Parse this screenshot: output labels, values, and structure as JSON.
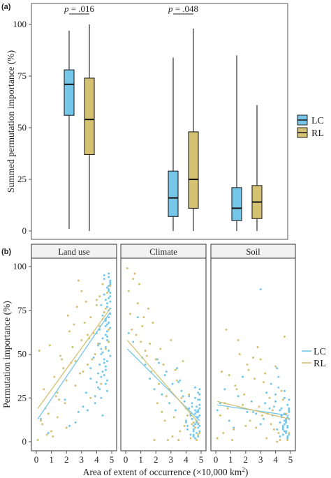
{
  "chart_data": [
    {
      "panel": "(a)",
      "type": "boxplot",
      "ylabel": "Summed permutation importance (%)",
      "ylim": [
        0,
        100
      ],
      "yticks": [
        0,
        25,
        50,
        75,
        100
      ],
      "groups": [
        "Land use",
        "Climate",
        "Soil"
      ],
      "legend": {
        "position": "right",
        "entries": [
          {
            "label": "LC",
            "color": "#75c6e8"
          },
          {
            "label": "RL",
            "color": "#d4c172"
          }
        ]
      },
      "series": [
        {
          "name": "LC",
          "color": "#75c6e8",
          "boxes": [
            {
              "min": 1,
              "q1": 56,
              "median": 71,
              "q3": 78,
              "max": 97
            },
            {
              "min": 0,
              "q1": 7,
              "median": 16,
              "q3": 29,
              "max": 84
            },
            {
              "min": 0,
              "q1": 5,
              "median": 11,
              "q3": 21,
              "max": 85
            }
          ]
        },
        {
          "name": "RL",
          "color": "#d4c172",
          "boxes": [
            {
              "min": 0,
              "q1": 37,
              "median": 54,
              "q3": 74,
              "max": 100
            },
            {
              "min": 0,
              "q1": 11,
              "median": 25,
              "q3": 48,
              "max": 98
            },
            {
              "min": 0,
              "q1": 6,
              "median": 14,
              "q3": 22,
              "max": 61
            }
          ]
        }
      ],
      "annotations": [
        {
          "group": 0,
          "text": "p = .016"
        },
        {
          "group": 1,
          "text": "p = .048"
        }
      ]
    },
    {
      "panel": "(b)",
      "type": "scatter",
      "ylabel": "Permutation importance (%)",
      "xlabel": "Area of extent of occurrence (×10,000 km²)",
      "ylim": [
        0,
        100
      ],
      "xlim": [
        0,
        5
      ],
      "yticks": [
        0,
        25,
        50,
        75,
        100
      ],
      "xticks": [
        0,
        1,
        2,
        3,
        4,
        5
      ],
      "facets": [
        "Land use",
        "Climate",
        "Soil"
      ],
      "legend": {
        "position": "right",
        "entries": [
          {
            "label": "LC",
            "color": "#75c6e8"
          },
          {
            "label": "RL",
            "color": "#d4c172"
          }
        ]
      },
      "fits": [
        {
          "facet": 0,
          "series": "LC",
          "x": [
            0.1,
            4.9
          ],
          "y": [
            13,
            74
          ]
        },
        {
          "facet": 0,
          "series": "RL",
          "x": [
            0.1,
            4.9
          ],
          "y": [
            19,
            76
          ]
        },
        {
          "facet": 1,
          "series": "LC",
          "x": [
            0.1,
            4.9
          ],
          "y": [
            53,
            12
          ]
        },
        {
          "facet": 1,
          "series": "RL",
          "x": [
            0.1,
            4.9
          ],
          "y": [
            58,
            10
          ]
        },
        {
          "facet": 2,
          "series": "LC",
          "x": [
            0.1,
            4.9
          ],
          "y": [
            21,
            15
          ]
        },
        {
          "facet": 2,
          "series": "RL",
          "x": [
            0.1,
            4.9
          ],
          "y": [
            23,
            13
          ]
        }
      ],
      "points": [
        {
          "facet": 0,
          "series": "LC",
          "x": [
            4.5,
            4.7,
            4.8,
            4.3,
            4.9,
            4.6,
            4.2,
            4.8,
            4.4,
            4.9,
            4.7,
            4.1,
            4.5,
            4.8,
            4.6,
            4.3,
            4.9,
            4.7,
            4.0,
            4.5,
            4.8,
            3.8,
            4.6,
            4.9,
            4.4,
            4.7,
            3.6,
            4.2,
            4.8,
            4.5,
            3.3,
            4.9,
            4.6,
            3.9,
            4.7,
            4.3,
            3.1,
            4.8,
            4.4,
            2.6,
            2.8,
            4.6,
            3.6,
            1.9,
            4.9,
            4.1,
            0.3,
            0.8,
            2.2,
            4.7,
            3.4,
            4.8,
            4.5,
            4.2,
            4.9,
            4.7,
            4.6,
            4.4,
            4.8,
            4.3,
            4.9,
            4.5,
            4.6,
            4.7,
            4.2,
            4.8,
            4.9,
            4.1,
            3.9,
            4.7,
            4.4,
            4.6,
            4.8,
            4.0,
            4.5,
            4.9,
            4.3,
            4.7,
            4.8,
            4.6
          ],
          "y": [
            95,
            88,
            82,
            78,
            90,
            70,
            64,
            86,
            72,
            92,
            60,
            55,
            84,
            75,
            66,
            50,
            80,
            58,
            62,
            45,
            68,
            48,
            54,
            73,
            40,
            35,
            42,
            30,
            52,
            38,
            28,
            65,
            33,
            22,
            46,
            25,
            20,
            57,
            15,
            11,
            17,
            61,
            36,
            24,
            49,
            31,
            13,
            5,
            9,
            79,
            18,
            94,
            74,
            56,
            85,
            67,
            81,
            59,
            71,
            53,
            76,
            47,
            69,
            63,
            44,
            89,
            83,
            39,
            26,
            77,
            51,
            43,
            87,
            34,
            93,
            91,
            37,
            29,
            96,
            41
          ]
        },
        {
          "facet": 0,
          "series": "RL",
          "x": [
            0.1,
            0.3,
            0.2,
            0.5,
            0.7,
            1.0,
            0.9,
            1.2,
            1.4,
            1.6,
            1.8,
            2.0,
            2.2,
            2.4,
            2.6,
            2.8,
            3.0,
            3.2,
            3.4,
            3.6,
            3.8,
            4.0,
            4.2,
            4.4,
            4.6,
            4.8,
            0.4,
            0.8,
            1.1,
            1.5,
            1.9,
            2.3,
            2.7,
            3.1,
            3.5,
            3.9,
            4.3,
            4.7,
            2.1,
            2.5,
            2.9,
            3.3,
            3.7,
            4.1,
            4.5,
            4.9,
            1.3,
            1.7,
            0.6,
            3.0,
            2.0,
            4.0,
            3.6,
            4.4,
            4.8,
            2.6,
            1.4,
            3.4,
            4.2,
            4.6
          ],
          "y": [
            1,
            12,
            52,
            30,
            4,
            6,
            55,
            37,
            28,
            49,
            42,
            8,
            63,
            54,
            32,
            92,
            86,
            68,
            44,
            71,
            62,
            81,
            66,
            90,
            76,
            57,
            10,
            16,
            3,
            24,
            22,
            45,
            77,
            40,
            59,
            50,
            33,
            85,
            72,
            67,
            39,
            80,
            47,
            56,
            74,
            89,
            26,
            47,
            19,
            58,
            35,
            78,
            25,
            70,
            64,
            46,
            14,
            61,
            83,
            53
          ]
        },
        {
          "facet": 1,
          "series": "LC",
          "x": [
            0.2,
            0.5,
            0.8,
            1.1,
            1.3,
            1.6,
            1.9,
            2.1,
            2.4,
            2.7,
            2.9,
            3.1,
            3.3,
            3.5,
            3.7,
            3.9,
            4.0,
            4.2,
            4.3,
            4.4,
            4.5,
            4.6,
            4.7,
            4.8,
            4.9,
            4.6,
            4.7,
            4.8,
            4.9,
            4.5,
            4.4,
            4.6,
            4.8,
            4.9,
            4.7,
            4.3,
            4.5,
            4.9,
            4.8,
            4.6,
            4.7,
            3.8,
            4.1,
            4.4,
            4.6,
            4.8,
            4.9,
            4.2,
            3.6,
            3.4,
            2.6,
            2.2,
            4.0,
            4.5,
            4.7,
            4.9,
            4.8,
            4.3,
            4.6,
            4.4,
            4.9,
            4.7,
            4.5,
            4.8,
            4.1,
            4.6,
            4.9,
            4.8
          ],
          "y": [
            62,
            57,
            71,
            48,
            44,
            36,
            30,
            47,
            27,
            40,
            22,
            33,
            18,
            34,
            29,
            23,
            12,
            26,
            16,
            20,
            9,
            25,
            14,
            17,
            6,
            31,
            11,
            8,
            21,
            4,
            13,
            10,
            28,
            19,
            5,
            15,
            7,
            24,
            3,
            18,
            12,
            26,
            9,
            22,
            16,
            14,
            30,
            19,
            35,
            42,
            38,
            45,
            11,
            6,
            20,
            15,
            10,
            4,
            8,
            13,
            27,
            17,
            3,
            24,
            7,
            2,
            9,
            18
          ]
        },
        {
          "facet": 1,
          "series": "RL",
          "x": [
            0.1,
            0.2,
            0.4,
            0.6,
            0.5,
            0.9,
            1.2,
            1.0,
            1.5,
            1.8,
            1.3,
            2.0,
            2.3,
            2.5,
            2.7,
            2.9,
            3.0,
            3.2,
            3.4,
            3.6,
            3.8,
            4.0,
            4.2,
            4.4,
            4.6,
            4.8,
            0.3,
            0.7,
            1.1,
            1.4,
            1.7,
            2.1,
            2.4,
            2.8,
            3.1,
            3.5,
            3.9,
            4.3,
            4.7,
            2.2,
            2.6,
            3.3,
            3.7,
            4.1,
            4.5,
            4.9,
            1.6,
            0.8,
            1.9
          ],
          "y": [
            99,
            86,
            64,
            96,
            93,
            90,
            71,
            57,
            76,
            68,
            52,
            47,
            53,
            44,
            26,
            30,
            58,
            14,
            35,
            6,
            46,
            19,
            27,
            10,
            8,
            4,
            73,
            61,
            66,
            49,
            40,
            22,
            17,
            1,
            3,
            1,
            9,
            2,
            1,
            33,
            12,
            41,
            25,
            15,
            11,
            5,
            56,
            79,
            1
          ]
        },
        {
          "facet": 2,
          "series": "LC",
          "x": [
            0.1,
            0.3,
            0.6,
            0.9,
            1.2,
            1.5,
            1.8,
            2.1,
            2.4,
            2.7,
            3.0,
            3.2,
            3.4,
            3.6,
            3.8,
            4.0,
            4.1,
            4.2,
            4.3,
            4.4,
            4.5,
            4.6,
            4.7,
            4.8,
            4.9,
            4.6,
            4.7,
            4.8,
            4.9,
            4.5,
            4.4,
            4.6,
            4.8,
            4.9,
            4.7,
            4.3,
            4.5,
            4.9,
            4.8,
            4.6,
            4.7,
            3.9,
            4.2,
            4.4,
            4.6,
            4.8,
            4.9,
            4.0,
            3.7,
            3.3,
            3.0,
            2.5,
            4.1,
            4.5,
            4.7,
            4.9,
            4.8,
            4.3,
            4.6,
            4.4
          ],
          "y": [
            18,
            22,
            30,
            12,
            8,
            26,
            37,
            17,
            23,
            16,
            87,
            13,
            28,
            19,
            15,
            23,
            42,
            37,
            11,
            19,
            9,
            29,
            6,
            14,
            4,
            25,
            12,
            3,
            17,
            7,
            15,
            10,
            21,
            13,
            5,
            18,
            8,
            24,
            2,
            16,
            11,
            20,
            31,
            14,
            6,
            9,
            19,
            27,
            33,
            22,
            10,
            17,
            7,
            4,
            13,
            18,
            8,
            3,
            12,
            15
          ]
        },
        {
          "facet": 2,
          "series": "RL",
          "x": [
            0.1,
            0.3,
            0.5,
            0.7,
            0.9,
            1.1,
            1.3,
            1.6,
            1.9,
            2.1,
            2.3,
            2.6,
            2.8,
            3.0,
            3.2,
            3.4,
            3.6,
            3.8,
            4.0,
            4.2,
            4.4,
            4.6,
            4.8,
            0.4,
            0.8,
            1.2,
            1.5,
            1.8,
            2.2,
            2.5,
            2.9,
            3.1,
            3.5,
            3.9,
            4.3,
            4.7,
            2.0,
            2.7,
            3.3,
            3.7,
            4.1,
            4.5,
            4.9,
            1.4,
            0.6
          ],
          "y": [
            2,
            15,
            5,
            64,
            38,
            1,
            32,
            50,
            27,
            44,
            12,
            36,
            54,
            47,
            34,
            2,
            25,
            18,
            43,
            5,
            29,
            60,
            1,
            40,
            19,
            7,
            58,
            21,
            41,
            48,
            20,
            15,
            16,
            7,
            1,
            16,
            9,
            8,
            39,
            10,
            0,
            24,
            5,
            30,
            22
          ]
        }
      ]
    }
  ]
}
